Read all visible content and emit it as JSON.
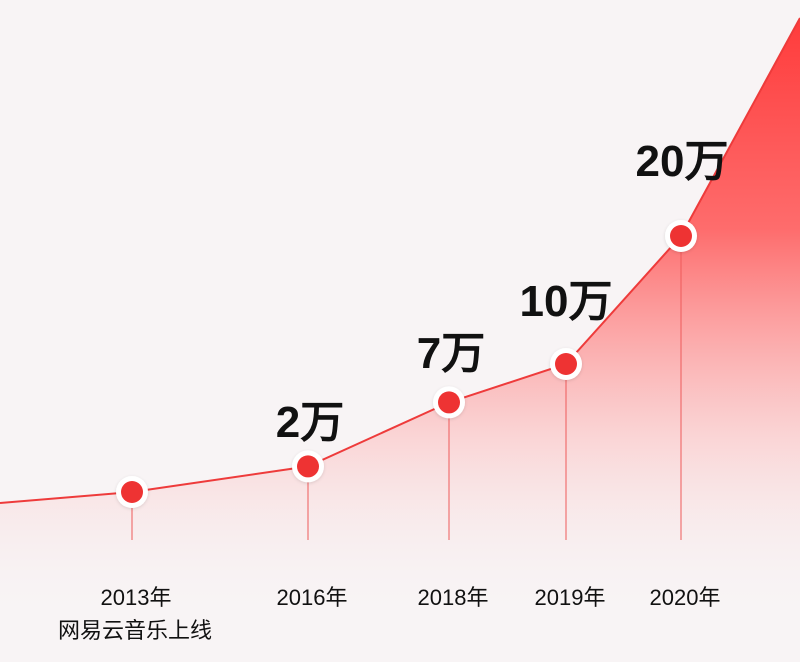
{
  "chart_data": {
    "type": "line",
    "title": "",
    "xlabel": "",
    "ylabel": "",
    "categories": [
      "2013年",
      "2016年",
      "2018年",
      "2019年",
      "2020年"
    ],
    "x": [
      "2013年",
      "2016年",
      "2018年",
      "2019年",
      "2020年"
    ],
    "values": [
      0,
      2,
      7,
      10,
      20
    ],
    "value_labels": [
      "",
      "2万",
      "7万",
      "10万",
      "20万"
    ],
    "category_notes": [
      "网易云音乐上线",
      "",
      "",
      "",
      ""
    ],
    "grid": false,
    "legend": "none",
    "colors": {
      "background": "#f8f4f5",
      "line": "#ee3b3b",
      "marker_fill": "#ee3333",
      "marker_ring": "#ffffff",
      "area_top": "#ff4040",
      "text": "#111111"
    }
  }
}
